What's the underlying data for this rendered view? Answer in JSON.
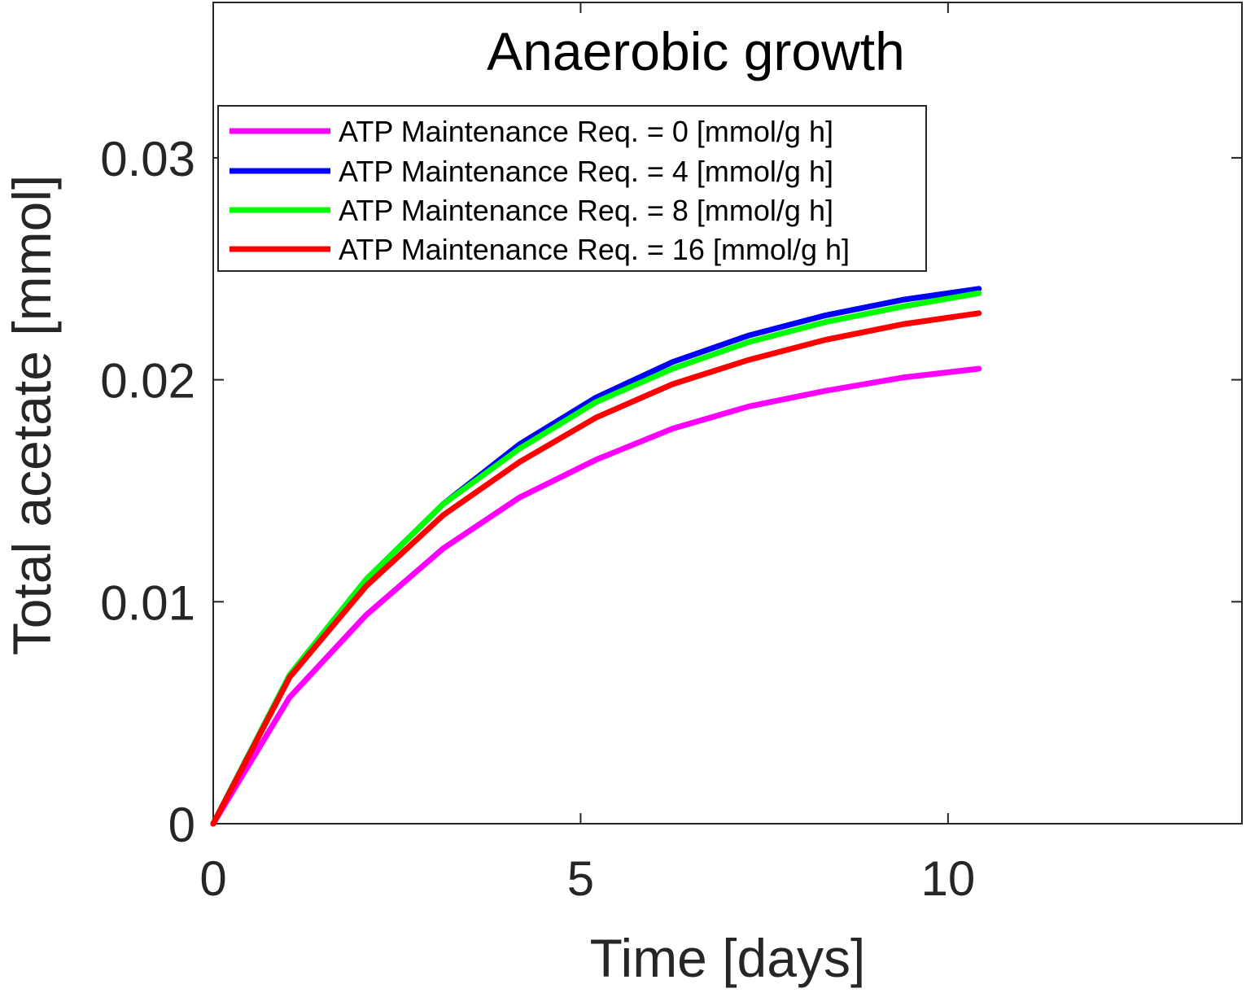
{
  "chart_data": {
    "type": "line",
    "title": "Anaerobic growth",
    "xlabel": "Time [days]",
    "ylabel": "Total acetate [mmol]",
    "xlim": [
      0,
      14
    ],
    "ylim": [
      0,
      0.037
    ],
    "xticks": [
      0,
      5,
      10
    ],
    "xtick_labels": [
      "0",
      "5",
      "10"
    ],
    "yticks": [
      0,
      0.01,
      0.02,
      0.03
    ],
    "ytick_labels": [
      "0",
      "0.01",
      "0.02",
      "0.03"
    ],
    "grid": false,
    "legend_position": "top-left",
    "x": [
      0,
      1.04,
      2.08,
      3.13,
      4.17,
      5.21,
      6.25,
      7.29,
      8.33,
      9.38,
      10.42
    ],
    "series": [
      {
        "name": "ATP Maintenance Req. = 0 [mmol/g h]",
        "color": "#ff00ff",
        "values": [
          0,
          0.0057,
          0.0094,
          0.0124,
          0.0147,
          0.0164,
          0.0178,
          0.0188,
          0.0195,
          0.0201,
          0.0205
        ]
      },
      {
        "name": "ATP Maintenance Req. = 4 [mmol/g h]",
        "color": "#0000ff",
        "values": [
          0,
          0.0067,
          0.011,
          0.0144,
          0.0171,
          0.0192,
          0.0208,
          0.022,
          0.0229,
          0.0236,
          0.0241
        ]
      },
      {
        "name": "ATP Maintenance Req. = 8 [mmol/g h]",
        "color": "#00ff00",
        "values": [
          0,
          0.0067,
          0.011,
          0.0144,
          0.0169,
          0.019,
          0.0205,
          0.0217,
          0.0226,
          0.0233,
          0.0239
        ]
      },
      {
        "name": "ATP Maintenance Req. = 16 [mmol/g h]",
        "color": "#ff0000",
        "values": [
          0,
          0.0066,
          0.0107,
          0.0139,
          0.0163,
          0.0183,
          0.0198,
          0.0209,
          0.0218,
          0.0225,
          0.023
        ]
      }
    ]
  }
}
